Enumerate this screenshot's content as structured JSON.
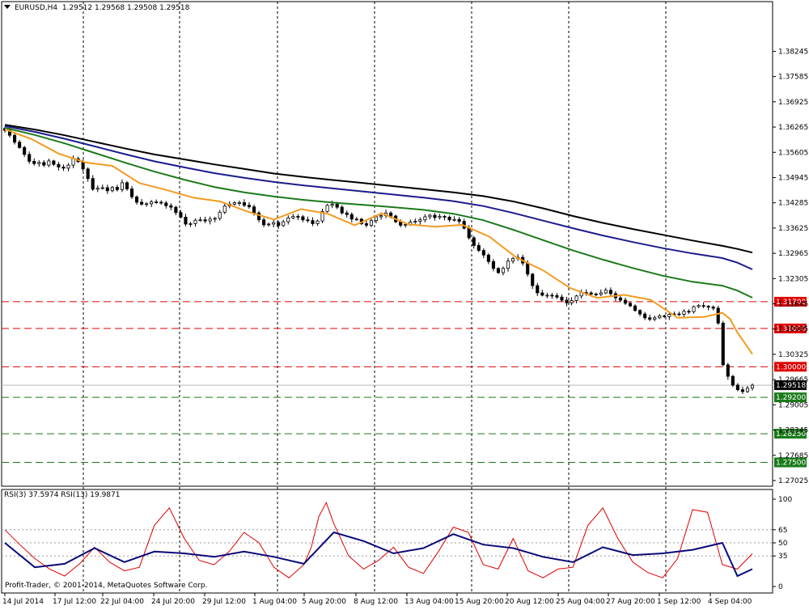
{
  "header": {
    "symbol": "EURUSD,H4",
    "ohlc": "1.29512 1.29568 1.29508 1.29518"
  },
  "rsi_header": "RSI(3) 37.5974  RSI(13) 19.9871",
  "footer": "Profit-Trader, © 2001-2014, MetaQuotes Software Corp.",
  "colors": {
    "background": "#ffffff",
    "candle": "#000000",
    "ma_fast": "#f29b21",
    "ma_mid": "#1c7a1c",
    "ma_slow": "#1c1c8c",
    "ma_slowest": "#000000",
    "resistance": "#dd0000",
    "support": "#1a7a1a",
    "rsi_fast": "#dd0000",
    "rsi_slow": "#0a0a78"
  },
  "chart_data": [
    {
      "type": "candlestick",
      "symbol": "EURUSD",
      "timeframe": "H4",
      "last_price": 1.29518,
      "ylim": [
        1.27025,
        1.38825
      ],
      "y_ticks": [
        "1.38245",
        "1.37585",
        "1.36925",
        "1.36265",
        "1.35605",
        "1.34945",
        "1.34285",
        "1.33625",
        "1.32965",
        "1.32305",
        "1.31645",
        "1.30985",
        "1.30325",
        "1.29665",
        "1.29005",
        "1.28345",
        "1.27685",
        "1.27025"
      ],
      "x_ticks": [
        "14 Jul 2014",
        "17 Jul 12:00",
        "22 Jul 04:00",
        "24 Jul 20:00",
        "29 Jul 12:00",
        "1 Aug 04:00",
        "5 Aug 20:00",
        "8 Aug 12:00",
        "13 Aug 04:00",
        "15 Aug 20:00",
        "20 Aug 12:00",
        "25 Aug 04:00",
        "27 Aug 20:00",
        "1 Sep 12:00",
        "4 Sep 04:00"
      ],
      "close_series": [
        1.3618,
        1.3605,
        1.3587,
        1.3573,
        1.3555,
        1.3537,
        1.3531,
        1.3534,
        1.3527,
        1.3538,
        1.3529,
        1.3522,
        1.3519,
        1.3527,
        1.3544,
        1.3536,
        1.3517,
        1.3492,
        1.3464,
        1.3467,
        1.3468,
        1.346,
        1.3469,
        1.3463,
        1.3481,
        1.3465,
        1.3444,
        1.343,
        1.3425,
        1.3426,
        1.3431,
        1.343,
        1.3428,
        1.3421,
        1.3417,
        1.3403,
        1.3391,
        1.3373,
        1.3374,
        1.3383,
        1.3384,
        1.3381,
        1.3386,
        1.3388,
        1.3404,
        1.342,
        1.3425,
        1.3429,
        1.3429,
        1.3422,
        1.3418,
        1.3402,
        1.3384,
        1.3371,
        1.3373,
        1.3377,
        1.3369,
        1.3379,
        1.3389,
        1.3393,
        1.3392,
        1.3384,
        1.3382,
        1.3374,
        1.3381,
        1.3406,
        1.3422,
        1.3425,
        1.3417,
        1.3402,
        1.3398,
        1.3386,
        1.3386,
        1.3374,
        1.337,
        1.3382,
        1.3392,
        1.3395,
        1.3402,
        1.3394,
        1.3379,
        1.337,
        1.3372,
        1.3378,
        1.338,
        1.3384,
        1.3392,
        1.3396,
        1.339,
        1.3393,
        1.3391,
        1.3384,
        1.3385,
        1.338,
        1.3362,
        1.3337,
        1.3317,
        1.3304,
        1.3292,
        1.3275,
        1.3257,
        1.3246,
        1.3257,
        1.3276,
        1.3283,
        1.3286,
        1.3271,
        1.3242,
        1.3212,
        1.3193,
        1.3187,
        1.3187,
        1.3186,
        1.3182,
        1.3174,
        1.3167,
        1.3173,
        1.3185,
        1.3194,
        1.3193,
        1.319,
        1.3189,
        1.3193,
        1.32,
        1.3191,
        1.318,
        1.3174,
        1.3166,
        1.3159,
        1.3147,
        1.3138,
        1.3128,
        1.3124,
        1.3128,
        1.3133,
        1.3131,
        1.3137,
        1.3138,
        1.3137,
        1.3145,
        1.3144,
        1.3157,
        1.316,
        1.3158,
        1.3156,
        1.3153,
        1.3114,
        1.3005,
        1.2975,
        1.2952,
        1.294,
        1.2935,
        1.2944,
        1.29518
      ],
      "ma_lines": [
        {
          "color_key": "ma_slowest",
          "points": [
            [
              0,
              1.36325
            ],
            [
              20,
              1.362
            ],
            [
              40,
              1.3605
            ],
            [
              60,
              1.3588
            ],
            [
              80,
              1.3571
            ],
            [
              100,
              1.3555
            ],
            [
              120,
              1.3542
            ],
            [
              140,
              1.3529
            ],
            [
              160,
              1.3517
            ],
            [
              180,
              1.3505
            ],
            [
              200,
              1.3496
            ],
            [
              220,
              1.3488
            ],
            [
              240,
              1.348
            ],
            [
              260,
              1.3472
            ],
            [
              280,
              1.3464
            ],
            [
              300,
              1.3456
            ],
            [
              320,
              1.3446
            ],
            [
              340,
              1.3432
            ],
            [
              360,
              1.3414
            ],
            [
              380,
              1.3394
            ],
            [
              400,
              1.3376
            ],
            [
              420,
              1.336
            ],
            [
              440,
              1.3345
            ],
            [
              460,
              1.333
            ],
            [
              480,
              1.3316
            ],
            [
              490,
              1.3308
            ],
            [
              500,
              1.32985
            ]
          ]
        },
        {
          "color_key": "ma_slow",
          "points": [
            [
              0,
              1.3629
            ],
            [
              20,
              1.3614
            ],
            [
              40,
              1.3596
            ],
            [
              60,
              1.3576
            ],
            [
              80,
              1.3556
            ],
            [
              100,
              1.3537
            ],
            [
              120,
              1.3521
            ],
            [
              140,
              1.3506
            ],
            [
              160,
              1.3494
            ],
            [
              180,
              1.3483
            ],
            [
              200,
              1.3474
            ],
            [
              220,
              1.3466
            ],
            [
              240,
              1.3458
            ],
            [
              260,
              1.345
            ],
            [
              280,
              1.3442
            ],
            [
              300,
              1.3433
            ],
            [
              320,
              1.342
            ],
            [
              340,
              1.3402
            ],
            [
              360,
              1.3382
            ],
            [
              380,
              1.3362
            ],
            [
              400,
              1.3343
            ],
            [
              420,
              1.3326
            ],
            [
              440,
              1.331
            ],
            [
              460,
              1.3296
            ],
            [
              480,
              1.3284
            ],
            [
              490,
              1.3272
            ],
            [
              500,
              1.32545
            ]
          ]
        },
        {
          "color_key": "ma_mid",
          "points": [
            [
              0,
              1.36245
            ],
            [
              20,
              1.3606
            ],
            [
              40,
              1.3584
            ],
            [
              60,
              1.3559
            ],
            [
              80,
              1.3534
            ],
            [
              100,
              1.351
            ],
            [
              120,
              1.3489
            ],
            [
              140,
              1.347
            ],
            [
              160,
              1.3456
            ],
            [
              180,
              1.3445
            ],
            [
              200,
              1.3436
            ],
            [
              220,
              1.3429
            ],
            [
              240,
              1.3423
            ],
            [
              260,
              1.3417
            ],
            [
              280,
              1.341
            ],
            [
              300,
              1.34
            ],
            [
              320,
              1.3383
            ],
            [
              340,
              1.3358
            ],
            [
              360,
              1.3331
            ],
            [
              380,
              1.3304
            ],
            [
              400,
              1.328
            ],
            [
              420,
              1.3258
            ],
            [
              440,
              1.3238
            ],
            [
              460,
              1.3222
            ],
            [
              480,
              1.3212
            ],
            [
              490,
              1.3199
            ],
            [
              500,
              1.31805
            ]
          ]
        },
        {
          "color_key": "ma_fast",
          "points": [
            [
              0,
              1.3621
            ],
            [
              18,
              1.3595
            ],
            [
              36,
              1.3557
            ],
            [
              54,
              1.3534
            ],
            [
              72,
              1.3525
            ],
            [
              90,
              1.348
            ],
            [
              108,
              1.3462
            ],
            [
              126,
              1.3442
            ],
            [
              144,
              1.3432
            ],
            [
              162,
              1.3406
            ],
            [
              180,
              1.3385
            ],
            [
              198,
              1.3412
            ],
            [
              216,
              1.34
            ],
            [
              234,
              1.337
            ],
            [
              252,
              1.3401
            ],
            [
              270,
              1.3372
            ],
            [
              288,
              1.3366
            ],
            [
              306,
              1.3371
            ],
            [
              324,
              1.334
            ],
            [
              342,
              1.3286
            ],
            [
              360,
              1.3252
            ],
            [
              378,
              1.3206
            ],
            [
              396,
              1.318
            ],
            [
              414,
              1.3188
            ],
            [
              432,
              1.3175
            ],
            [
              450,
              1.3128
            ],
            [
              468,
              1.313
            ],
            [
              480,
              1.3141
            ],
            [
              485,
              1.3125
            ],
            [
              490,
              1.309
            ],
            [
              500,
              1.3033
            ]
          ]
        }
      ],
      "annotations": [
        {
          "label": "1.31700",
          "value": 1.317,
          "style": "dashed",
          "color_key": "resistance"
        },
        {
          "label": "1.31000",
          "value": 1.31,
          "style": "dashed",
          "color_key": "resistance"
        },
        {
          "label": "1.30000",
          "value": 1.3,
          "style": "dashed",
          "color_key": "resistance"
        },
        {
          "label": "1.29200",
          "value": 1.292,
          "style": "dashed",
          "color_key": "support"
        },
        {
          "label": "1.28250",
          "value": 1.2825,
          "style": "dashed",
          "color_key": "support"
        },
        {
          "label": "1.27500",
          "value": 1.275,
          "style": "dashed",
          "color_key": "support"
        }
      ]
    },
    {
      "type": "line",
      "title": "RSI(3) 37.5974  RSI(13) 19.9871",
      "ylim": [
        0,
        100
      ],
      "y_ticks": [
        "100",
        "65",
        "50",
        "35",
        "0"
      ],
      "levels": [
        65,
        50,
        35
      ],
      "series": [
        {
          "name": "RSI(3)",
          "color_key": "rsi_fast",
          "last": 37.5974,
          "points": [
            [
              0,
              65
            ],
            [
              10,
              48
            ],
            [
              20,
              32
            ],
            [
              30,
              20
            ],
            [
              40,
              12
            ],
            [
              50,
              26
            ],
            [
              60,
              45
            ],
            [
              70,
              28
            ],
            [
              80,
              18
            ],
            [
              90,
              22
            ],
            [
              100,
              70
            ],
            [
              110,
              90
            ],
            [
              120,
              55
            ],
            [
              130,
              30
            ],
            [
              140,
              25
            ],
            [
              150,
              40
            ],
            [
              160,
              62
            ],
            [
              170,
              50
            ],
            [
              180,
              22
            ],
            [
              190,
              10
            ],
            [
              200,
              25
            ],
            [
              205,
              45
            ],
            [
              210,
              80
            ],
            [
              215,
              96
            ],
            [
              220,
              72
            ],
            [
              230,
              35
            ],
            [
              240,
              20
            ],
            [
              250,
              30
            ],
            [
              260,
              45
            ],
            [
              270,
              22
            ],
            [
              280,
              15
            ],
            [
              290,
              40
            ],
            [
              300,
              68
            ],
            [
              310,
              62
            ],
            [
              320,
              25
            ],
            [
              330,
              20
            ],
            [
              340,
              55
            ],
            [
              350,
              18
            ],
            [
              360,
              10
            ],
            [
              370,
              20
            ],
            [
              380,
              22
            ],
            [
              390,
              70
            ],
            [
              400,
              90
            ],
            [
              410,
              55
            ],
            [
              420,
              28
            ],
            [
              430,
              16
            ],
            [
              440,
              10
            ],
            [
              450,
              32
            ],
            [
              460,
              88
            ],
            [
              470,
              85
            ],
            [
              480,
              25
            ],
            [
              490,
              20
            ],
            [
              500,
              37.6
            ]
          ]
        },
        {
          "name": "RSI(13)",
          "color_key": "rsi_slow",
          "last": 19.9871,
          "points": [
            [
              0,
              50
            ],
            [
              20,
              22
            ],
            [
              40,
              26
            ],
            [
              60,
              44
            ],
            [
              80,
              28
            ],
            [
              100,
              40
            ],
            [
              120,
              38
            ],
            [
              140,
              34
            ],
            [
              160,
              40
            ],
            [
              180,
              34
            ],
            [
              200,
              26
            ],
            [
              220,
              62
            ],
            [
              240,
              52
            ],
            [
              260,
              38
            ],
            [
              280,
              44
            ],
            [
              300,
              60
            ],
            [
              320,
              48
            ],
            [
              340,
              44
            ],
            [
              360,
              34
            ],
            [
              380,
              28
            ],
            [
              400,
              45
            ],
            [
              420,
              36
            ],
            [
              440,
              38
            ],
            [
              460,
              42
            ],
            [
              480,
              50
            ],
            [
              490,
              12
            ],
            [
              500,
              20
            ]
          ]
        }
      ]
    }
  ]
}
